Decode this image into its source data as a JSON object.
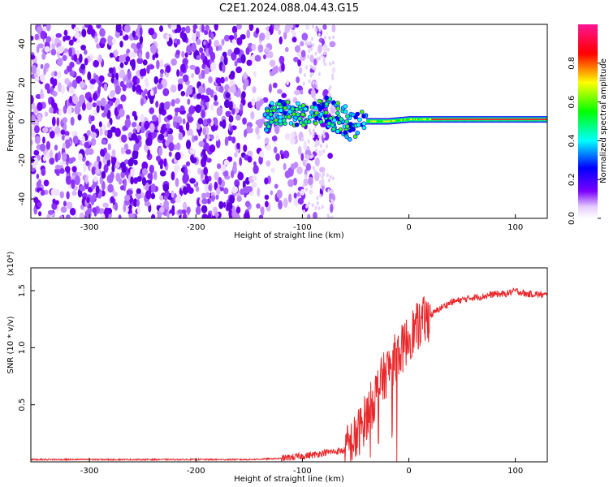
{
  "title": "C2E1.2024.088.04.43.G15",
  "chart_data": [
    {
      "type": "heatmap",
      "xlabel": "Height of straight line (km)",
      "ylabel": "Frequency (Hz)",
      "xlim": [
        -355,
        130
      ],
      "ylim": [
        -50,
        50
      ],
      "xticks": [
        -300,
        -200,
        -100,
        0,
        100
      ],
      "yticks": [
        40,
        20,
        0,
        -20,
        -40
      ],
      "colorbar": {
        "label": "Normalized spectral amplitude",
        "range": [
          0.0,
          1.0
        ],
        "ticks": [
          0.0,
          0.2,
          0.4,
          0.6,
          0.8
        ],
        "colormap": [
          "#ffffff",
          "#6a00ff",
          "#0000ff",
          "#00ffff",
          "#00ff00",
          "#ffff00",
          "#ff0000",
          "#ff1493"
        ]
      },
      "features": {
        "noise_region_x": [
          -355,
          -100
        ],
        "signal_band_center_hz": [
          [
            -130,
            5
          ],
          [
            -110,
            4
          ],
          [
            -90,
            3
          ],
          [
            -80,
            6
          ],
          [
            -70,
            3
          ],
          [
            -60,
            0
          ],
          [
            -50,
            -4
          ],
          [
            -40,
            0
          ],
          [
            -20,
            0
          ],
          [
            0,
            1
          ],
          [
            20,
            1
          ],
          [
            60,
            1
          ],
          [
            100,
            1
          ],
          [
            130,
            1
          ]
        ]
      },
      "grid": false
    },
    {
      "type": "line",
      "xlabel": "Height of straight line (km)",
      "ylabel": "SNR (10 * v/v)",
      "y_multiplier": "(x10⁴)",
      "xlim": [
        -355,
        130
      ],
      "ylim": [
        0,
        1.7
      ],
      "xticks": [
        -300,
        -200,
        -100,
        0,
        100
      ],
      "yticks": [
        0.5,
        1.0,
        1.5
      ],
      "series": [
        {
          "color": "#e8282b",
          "x": [
            -355,
            -300,
            -250,
            -200,
            -150,
            -120,
            -100,
            -90,
            -80,
            -70,
            -60,
            -50,
            -45,
            -40,
            -35,
            -30,
            -25,
            -20,
            -15,
            -10,
            -5,
            0,
            10,
            20,
            30,
            40,
            50,
            60,
            70,
            80,
            90,
            100,
            110,
            120,
            130
          ],
          "y": [
            0.02,
            0.02,
            0.02,
            0.02,
            0.02,
            0.03,
            0.05,
            0.06,
            0.08,
            0.09,
            0.1,
            0.2,
            0.3,
            0.4,
            0.5,
            0.62,
            0.72,
            0.8,
            0.88,
            0.95,
            1.0,
            1.1,
            1.2,
            1.28,
            1.35,
            1.4,
            1.42,
            1.44,
            1.45,
            1.47,
            1.47,
            1.5,
            1.47,
            1.47,
            1.46
          ]
        }
      ],
      "grid": false
    }
  ]
}
